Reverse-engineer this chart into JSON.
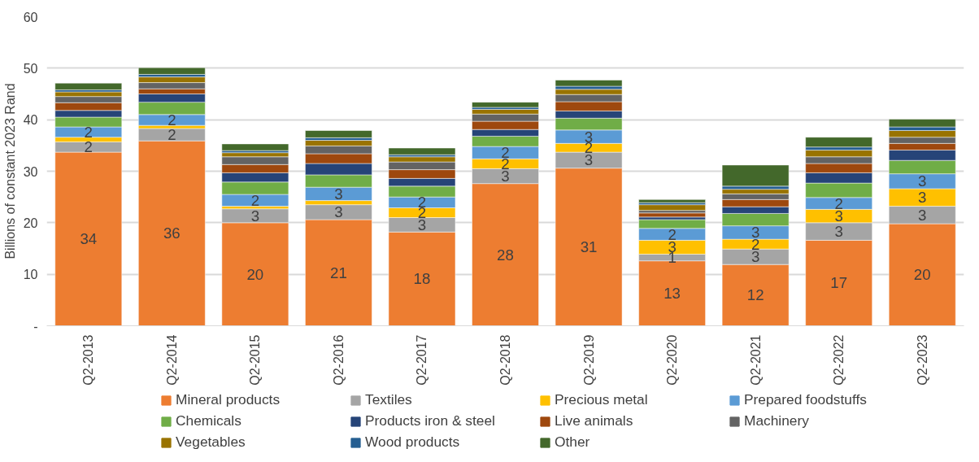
{
  "chart_data": {
    "type": "bar",
    "stacked": true,
    "ylabel": "Billions of constant 2023 Rand",
    "categories": [
      "Q2-2013",
      "Q2-2014",
      "Q2-2015",
      "Q2-2016",
      "Q2-2017",
      "Q2-2018",
      "Q2-2019",
      "Q2-2020",
      "Q2-2021",
      "Q2-2022",
      "Q2-2023"
    ],
    "series": [
      {
        "name": "Mineral products",
        "color": "#ed7d31",
        "values": [
          33.7,
          35.9,
          20.0,
          20.6,
          18.2,
          27.6,
          30.6,
          12.6,
          11.9,
          16.6,
          19.8
        ],
        "value_labels": [
          "34",
          "36",
          "20",
          "21",
          "18",
          "28",
          "31",
          "13",
          "12",
          "17",
          "20"
        ]
      },
      {
        "name": "Textiles",
        "color": "#a5a5a5",
        "values": [
          2.0,
          2.4,
          2.7,
          2.9,
          2.8,
          2.9,
          3.1,
          1.3,
          3.0,
          3.4,
          3.4
        ],
        "value_labels": [
          "2",
          "2",
          "3",
          "3",
          "3",
          "3",
          "3",
          "1",
          "3",
          "3",
          "3"
        ]
      },
      {
        "name": "Precious metal",
        "color": "#ffc000",
        "values": [
          0.9,
          0.6,
          0.5,
          0.8,
          1.9,
          1.9,
          1.7,
          2.7,
          1.9,
          2.6,
          3.4
        ],
        "value_labels": [
          null,
          null,
          null,
          null,
          "2",
          "2",
          "2",
          "3",
          "2",
          "3",
          "3"
        ]
      },
      {
        "name": "Prepared foodstuffs",
        "color": "#5b9bd5",
        "values": [
          2.0,
          2.1,
          2.3,
          2.6,
          2.1,
          2.4,
          2.6,
          2.3,
          2.6,
          2.3,
          2.9
        ],
        "value_labels": [
          "2",
          "2",
          "2",
          "3",
          "2",
          "2",
          "3",
          "2",
          "3",
          "2",
          "3"
        ]
      },
      {
        "name": "Chemicals",
        "color": "#70ad47",
        "values": [
          1.9,
          2.4,
          2.4,
          2.4,
          2.1,
          2.0,
          2.3,
          1.7,
          2.4,
          2.8,
          2.6
        ]
      },
      {
        "name": "Products iron & steel",
        "color": "#264478",
        "values": [
          1.3,
          1.6,
          1.8,
          2.2,
          1.5,
          1.3,
          1.4,
          0.5,
          1.3,
          2.0,
          2.0
        ]
      },
      {
        "name": "Live animals",
        "color": "#9e480e",
        "values": [
          1.5,
          1.0,
          1.6,
          1.9,
          1.7,
          1.6,
          1.8,
          0.8,
          1.4,
          1.8,
          1.3
        ]
      },
      {
        "name": "Machinery",
        "color": "#636363",
        "values": [
          1.2,
          1.2,
          1.5,
          1.5,
          1.5,
          1.4,
          1.4,
          0.5,
          1.1,
          1.3,
          1.2
        ]
      },
      {
        "name": "Vegetables",
        "color": "#997300",
        "values": [
          0.9,
          1.1,
          0.8,
          1.1,
          1.0,
          0.9,
          1.0,
          1.1,
          0.9,
          1.3,
          1.3
        ]
      },
      {
        "name": "Wood products",
        "color": "#255e91",
        "values": [
          0.4,
          0.5,
          0.4,
          0.5,
          0.4,
          0.4,
          0.6,
          0.4,
          0.6,
          0.6,
          0.7
        ]
      },
      {
        "name": "Other",
        "color": "#43682b",
        "values": [
          1.3,
          1.3,
          1.3,
          1.4,
          1.3,
          1.0,
          1.2,
          0.6,
          4.1,
          1.9,
          1.5
        ]
      }
    ],
    "ylim": [
      0,
      60
    ],
    "yticks": [
      {
        "value": 0,
        "label": "-"
      },
      10,
      20,
      30,
      40,
      50,
      60
    ],
    "grid": "y",
    "legend": "bottom"
  }
}
